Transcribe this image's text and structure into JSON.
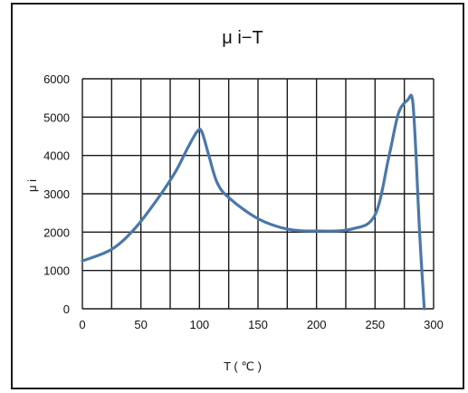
{
  "chart_data": {
    "type": "line",
    "title": "μ i−T",
    "xlabel": "T ( ℃ )",
    "ylabel": "μ i",
    "xlim": [
      0,
      300
    ],
    "ylim": [
      0,
      6000
    ],
    "x_ticks": [
      0,
      50,
      100,
      150,
      200,
      250,
      300
    ],
    "y_ticks": [
      0,
      1000,
      2000,
      3000,
      4000,
      5000,
      6000
    ],
    "x_tick_labels": [
      "0",
      "50",
      "100",
      "150",
      "200",
      "250",
      "300"
    ],
    "y_tick_labels": [
      "0",
      "1000",
      "2000",
      "3000",
      "4000",
      "5000",
      "6000"
    ],
    "grid": true,
    "x_grid_step": 25,
    "y_grid_step": 1000,
    "line_color": "#4a78aa",
    "series": [
      {
        "x": [
          0,
          25,
          45,
          65,
          80,
          90,
          98,
          102,
          108,
          115,
          125,
          150,
          175,
          200,
          230,
          250,
          262,
          270,
          278,
          282,
          285,
          288,
          292
        ],
        "y": [
          1250,
          1550,
          2100,
          2900,
          3600,
          4200,
          4620,
          4620,
          4000,
          3300,
          2900,
          2350,
          2080,
          2030,
          2080,
          2450,
          4000,
          5100,
          5450,
          5450,
          4000,
          2000,
          0
        ]
      }
    ]
  }
}
